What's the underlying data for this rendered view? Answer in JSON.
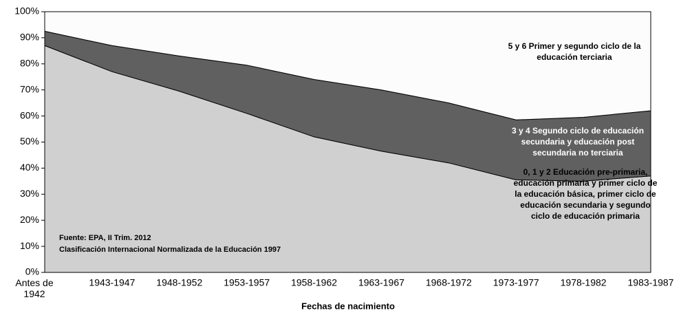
{
  "chart_data": {
    "type": "stacked_area",
    "x_label": "Fechas de nacimiento",
    "categories": [
      "Antes de 1942",
      "1943-1947",
      "1948-1952",
      "1953-1957",
      "1958-1962",
      "1963-1967",
      "1968-1972",
      "1973-1977",
      "1978-1982",
      "1983-1987"
    ],
    "series": [
      {
        "name": "0, 1 y 2 Educación pre-primaria, educación primaria y primer ciclo de la educación básica, primer ciclo de educación secundaria y segundo ciclo de educación primaria",
        "color": "#d0d0d0",
        "values": [
          87,
          77,
          69.5,
          61,
          52,
          46.5,
          42,
          35.5,
          35,
          37
        ]
      },
      {
        "name": "3 y 4 Segundo ciclo de educación secundaria y educación post secundaria no terciaria",
        "color": "#606060",
        "values": [
          5.5,
          10,
          13.5,
          18.5,
          22,
          23.5,
          23,
          23,
          24.5,
          25
        ]
      },
      {
        "name": "5 y 6 Primer y segundo ciclo de la educación terciaria",
        "color": "#fcfcfc",
        "values": [
          7.5,
          13,
          17,
          20.5,
          26,
          30,
          35,
          41.5,
          40.5,
          38
        ]
      }
    ],
    "annotations": [
      "Fuente: EPA, II Trim. 2012",
      "Clasificación Internacional Normalizada de la Educación 1997"
    ],
    "ylim": [
      0,
      100
    ],
    "yticks": [
      {
        "value": 0,
        "label": "0%"
      },
      {
        "value": 10,
        "label": "10%"
      },
      {
        "value": 20,
        "label": "20%"
      },
      {
        "value": 30,
        "label": "30%"
      },
      {
        "value": 40,
        "label": "40%"
      },
      {
        "value": 50,
        "label": "50%"
      },
      {
        "value": 60,
        "label": "60%"
      },
      {
        "value": 70,
        "label": "70%"
      },
      {
        "value": 80,
        "label": "80%"
      },
      {
        "value": 90,
        "label": "90%"
      },
      {
        "value": 100,
        "label": "100%"
      }
    ]
  }
}
